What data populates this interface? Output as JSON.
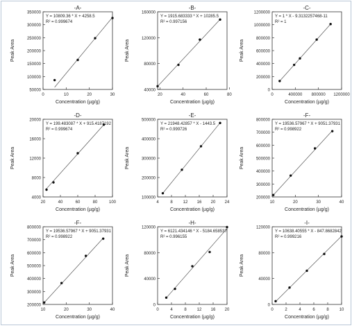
{
  "chart_data": [
    {
      "type": "scatter",
      "title": "-A-",
      "xlabel": "Concentration (µg/g)",
      "ylabel": "Peak Area",
      "equation": "Y = 10809.36 * X + 4258.5",
      "r2": "R² = 0.999674",
      "xlim": [
        0,
        30
      ],
      "ylim": [
        50000,
        350000
      ],
      "xticks": [
        0,
        10,
        20,
        30
      ],
      "yticks": [
        50000,
        100000,
        150000,
        200000,
        250000,
        300000,
        350000
      ],
      "x": [
        5,
        15,
        22.5,
        30
      ],
      "y": [
        86000,
        164000,
        248000,
        326000
      ],
      "fit": {
        "slope": 10809.36,
        "intercept": 4258.5
      }
    },
    {
      "type": "scatter",
      "title": "-B-",
      "xlabel": "Concentration (µg/g)",
      "ylabel": "Peak Area",
      "equation": "Y = 1915.683333 * X + 10285.5",
      "r2": "R² = 0.997156",
      "xlim": [
        18,
        78
      ],
      "ylim": [
        40000,
        160000
      ],
      "xticks": [
        20,
        40,
        60,
        80
      ],
      "yticks": [
        40000,
        80000,
        120000,
        160000
      ],
      "x": [
        18,
        36,
        54.5,
        72
      ],
      "y": [
        45000,
        78000,
        117000,
        148000
      ],
      "fit": {
        "slope": 1915.683333,
        "intercept": 10285.5
      }
    },
    {
      "type": "scatter",
      "title": "-C-",
      "xlabel": "Concentration (µg/g)",
      "ylabel": "Peak Area",
      "equation": "Y = 1 * X - 9.3132257468-11",
      "r2": "R² = 1",
      "xlim": [
        0,
        1200000
      ],
      "ylim": [
        0,
        1200000
      ],
      "xticks": [
        0,
        400000,
        800000,
        1200000
      ],
      "yticks": [
        0,
        200000,
        400000,
        600000,
        800000,
        1000000,
        1200000
      ],
      "x": [
        130000,
        380000,
        480000,
        770000,
        1010000
      ],
      "y": [
        130000,
        380000,
        480000,
        770000,
        1010000
      ],
      "fit": {
        "slope": 1,
        "intercept": 0
      }
    },
    {
      "type": "scatter",
      "title": "-D-",
      "xlabel": "Concentration (µg/g)",
      "ylabel": "Peak Area",
      "equation": "Y = 199.483087 * X + 915.4187192",
      "r2": "R² = 0.999674",
      "xlim": [
        20,
        100
      ],
      "ylim": [
        4000,
        20000
      ],
      "xticks": [
        20,
        40,
        60,
        80,
        100
      ],
      "yticks": [
        4000,
        8000,
        12000,
        16000,
        20000
      ],
      "x": [
        24,
        32,
        60,
        90
      ],
      "y": [
        5500,
        7000,
        13000,
        18900
      ],
      "fit": {
        "slope": 199.483087,
        "intercept": 915.4187192
      }
    },
    {
      "type": "scatter",
      "title": "-E-",
      "xlabel": "Concentration (µg/g)",
      "ylabel": "Peak Area",
      "equation": "Y = 21948.42857 * X - 1443.5",
      "r2": "R² = 0.999726",
      "xlim": [
        4,
        24
      ],
      "ylim": [
        100000,
        500000
      ],
      "xticks": [
        4,
        8,
        12,
        16,
        20,
        24
      ],
      "yticks": [
        100000,
        200000,
        300000,
        400000,
        500000
      ],
      "x": [
        5.5,
        11,
        16.5,
        22
      ],
      "y": [
        119000,
        240000,
        361000,
        481000
      ],
      "fit": {
        "slope": 21948.42857,
        "intercept": -1443.5
      }
    },
    {
      "type": "scatter",
      "title": "-F-",
      "xlabel": "Concentration (µg/g)",
      "ylabel": "Peak Area",
      "equation": "Y = 19536.57967 * X + 9051.37931",
      "r2": "R² = 0.998922",
      "xlim": [
        10,
        40
      ],
      "ylim": [
        200000,
        800000
      ],
      "xticks": [
        10,
        20,
        30,
        40
      ],
      "yticks": [
        200000,
        300000,
        400000,
        500000,
        600000,
        700000,
        800000
      ],
      "x": [
        10.5,
        18,
        28.5,
        36
      ],
      "y": [
        215000,
        365000,
        575000,
        708000
      ],
      "fit": {
        "slope": 19536.57967,
        "intercept": 9051.37931
      }
    },
    {
      "type": "scatter",
      "title": "-F-",
      "xlabel": "Concentration (µg/g)",
      "ylabel": "Peak Area",
      "equation": "Y = 19536.57967 * X + 9051.37931",
      "r2": "R² = 0.998922",
      "xlim": [
        10,
        40
      ],
      "ylim": [
        200000,
        800000
      ],
      "xticks": [
        10,
        20,
        30,
        40
      ],
      "yticks": [
        200000,
        300000,
        400000,
        500000,
        600000,
        700000,
        800000
      ],
      "x": [
        10.5,
        18,
        28.5,
        36
      ],
      "y": [
        215000,
        365000,
        575000,
        708000
      ],
      "fit": {
        "slope": 19536.57967,
        "intercept": 9051.37931
      }
    },
    {
      "type": "scatter",
      "title": "-H-",
      "xlabel": "Concentration (µg/g)",
      "ylabel": "Peak Area",
      "equation": "Y = 6121.434146 * X - 5184.658537",
      "r2": "R² = 0.996155",
      "xlim": [
        0,
        20
      ],
      "ylim": [
        0,
        120000
      ],
      "xticks": [
        0,
        4,
        8,
        12,
        16,
        20
      ],
      "yticks": [
        0,
        40000,
        80000,
        120000
      ],
      "x": [
        2.5,
        5,
        10,
        15,
        20
      ],
      "y": [
        10500,
        24000,
        59000,
        81000,
        119500
      ],
      "fit": {
        "slope": 6121.434146,
        "intercept": -5184.658537
      }
    },
    {
      "type": "scatter",
      "title": "-I-",
      "xlabel": "Concentration (µg/g)",
      "ylabel": "Peak Area",
      "equation": "Y = 10638.40555 * X - 847.8682842",
      "r2": "R² = 0.999216",
      "xlim": [
        0,
        10
      ],
      "ylim": [
        0,
        120000
      ],
      "xticks": [
        0,
        2,
        4,
        6,
        8,
        10
      ],
      "yticks": [
        0,
        40000,
        80000,
        120000
      ],
      "x": [
        0.5,
        2.5,
        5,
        7.5,
        10
      ],
      "y": [
        5000,
        26000,
        52000,
        78000,
        105000
      ],
      "fit": {
        "slope": 10638.40555,
        "intercept": -847.8682842
      }
    }
  ]
}
